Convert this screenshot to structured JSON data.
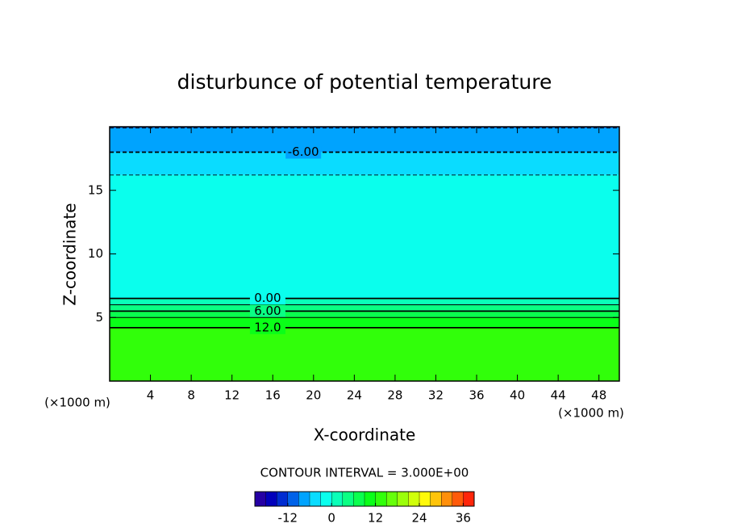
{
  "chart_data": {
    "type": "contour",
    "title": "disturbunce of potential temperature",
    "xlabel": "X-coordinate",
    "ylabel": "Z-coordinate",
    "x_unit": "(×1000 m)",
    "y_unit": "(×1000 m)",
    "xlim": [
      0,
      50
    ],
    "ylim": [
      0,
      20
    ],
    "xticks": [
      4,
      8,
      12,
      16,
      20,
      24,
      28,
      32,
      36,
      40,
      44,
      48
    ],
    "yticks": [
      5,
      10,
      15
    ],
    "contours": [
      {
        "level": -9,
        "z": 19.9,
        "dashed": true
      },
      {
        "level": -6,
        "z": 18,
        "dashed": true,
        "label": "-6.00"
      },
      {
        "level": -3,
        "z": 16.2,
        "dashed": true
      },
      {
        "level": 0,
        "z": 6.5,
        "label": "0.00"
      },
      {
        "level": 3,
        "z": 6
      },
      {
        "level": 6,
        "z": 5.5,
        "label": "6.00"
      },
      {
        "level": 9,
        "z": 5
      },
      {
        "level": 12,
        "z": 4.2,
        "label": "12.0"
      }
    ],
    "contour_interval_text": "CONTOUR INTERVAL = 3.000E+00",
    "colorbar": {
      "clim": [
        -21,
        39
      ],
      "step": 3,
      "ticks": [
        -12,
        0,
        12,
        24,
        36
      ]
    }
  }
}
